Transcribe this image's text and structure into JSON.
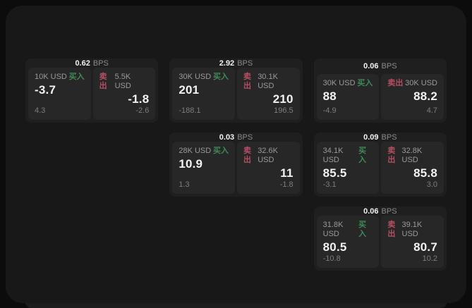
{
  "colors": {
    "outer_background": "#0c0c0c",
    "page_surface": "#181818",
    "card_bg": "#1f1f1f",
    "panel_bg": "#272727",
    "buy_green": "#3f8a58",
    "sell_red": "#b44f63",
    "label_gray": "#9a9a9a",
    "value_white": "#f2f2f2"
  },
  "cards": [
    {
      "bps_value": "0.62",
      "bps_unit": "BPS",
      "buy": {
        "amount": "10K USD",
        "label": "买入",
        "value": "-3.7",
        "sub": "4.3"
      },
      "sell": {
        "label": "卖出",
        "amount": "5.5K USD",
        "value": "-1.8",
        "sub": "-2.6"
      }
    },
    {
      "bps_value": "2.92",
      "bps_unit": "BPS",
      "buy": {
        "amount": "30K USD",
        "label": "买入",
        "value": "201",
        "sub": "-188.1"
      },
      "sell": {
        "label": "卖出",
        "amount": "30.1K USD",
        "value": "210",
        "sub": "196.5"
      }
    },
    {
      "bps_value": "0.06",
      "bps_unit": "BPS",
      "buy": {
        "amount": "30K USD",
        "label": "买入",
        "value": "88",
        "sub": "-4.9"
      },
      "sell": {
        "label": "卖出",
        "amount": "30K USD",
        "value": "88.2",
        "sub": "4.7"
      }
    },
    {
      "bps_value": "0.03",
      "bps_unit": "BPS",
      "buy": {
        "amount": "28K USD",
        "label": "买入",
        "value": "10.9",
        "sub": "1.3"
      },
      "sell": {
        "label": "卖出",
        "amount": "32.6K USD",
        "value": "11",
        "sub": "-1.8"
      }
    },
    {
      "bps_value": "0.09",
      "bps_unit": "BPS",
      "buy": {
        "amount": "34.1K USD",
        "label": "买入",
        "value": "85.5",
        "sub": "-3.1"
      },
      "sell": {
        "label": "卖出",
        "amount": "32.8K USD",
        "value": "85.8",
        "sub": "3.0"
      }
    },
    {
      "bps_value": "0.06",
      "bps_unit": "BPS",
      "buy": {
        "amount": "31.8K USD",
        "label": "买入",
        "value": "80.5",
        "sub": "-10.8"
      },
      "sell": {
        "label": "卖出",
        "amount": "39.1K USD",
        "value": "80.7",
        "sub": "10.2"
      }
    }
  ]
}
